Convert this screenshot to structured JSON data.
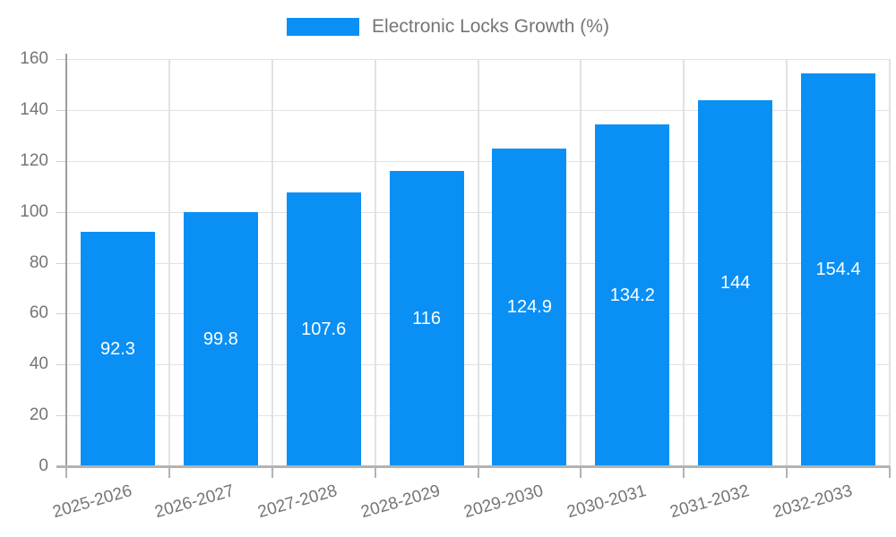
{
  "legend": {
    "label": "Electronic Locks Growth (%)"
  },
  "colors": {
    "bar": "#0a90f5",
    "grid": "#e2e2e2",
    "ytick": "#d0d0d0",
    "xtick": "#b3b3b3",
    "axis_y": "#9e9e9e",
    "axis_x": "#b3b3b3",
    "label_text": "#757575",
    "value_text": "#ffffff",
    "background": "#ffffff"
  },
  "chart_data": {
    "type": "bar",
    "title": "",
    "categories": [
      "2025-2026",
      "2026-2027",
      "2027-2028",
      "2028-2029",
      "2029-2030",
      "2030-2031",
      "2031-2032",
      "2032-2033"
    ],
    "series": [
      {
        "name": "Electronic Locks Growth (%)",
        "values": [
          92.3,
          99.8,
          107.6,
          116,
          124.9,
          134.2,
          144,
          154.4
        ]
      }
    ],
    "xlabel": "",
    "ylabel": "",
    "ylim": [
      0,
      160
    ],
    "yticks": [
      0,
      20,
      40,
      60,
      80,
      100,
      120,
      140,
      160
    ],
    "grid": true,
    "value_labels_shown": true,
    "legend_position": "top-center"
  }
}
